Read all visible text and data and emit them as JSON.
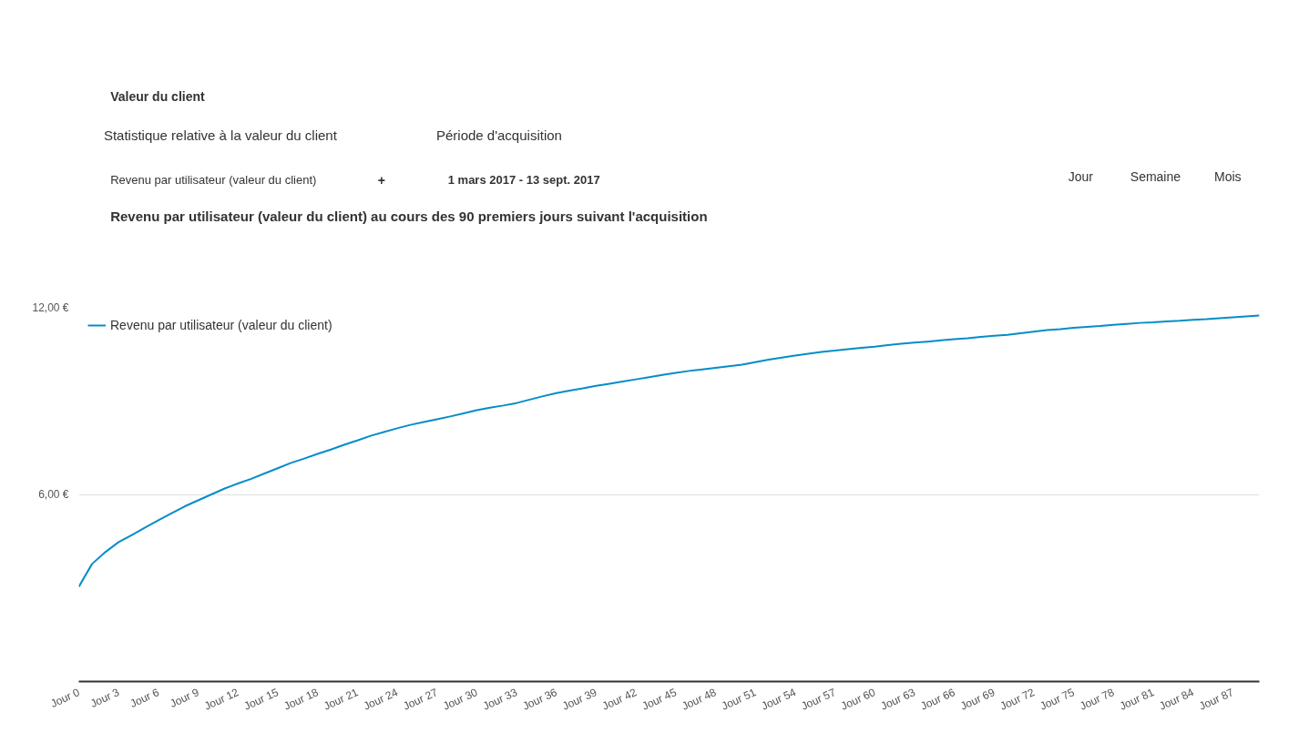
{
  "chart_data": {
    "type": "line",
    "title": "Revenu par utilisateur (valeur du client) au cours des 90 premiers jours suivant l'acquisition",
    "annotations": [
      "Valeur du client",
      "Statistique relative à la valeur du client",
      "Revenu par utilisateur (valeur du client)",
      "+",
      "Période d'acquisition",
      "1 mars 2017 - 13 sept. 2017",
      "Jour",
      "Semaine",
      "Mois"
    ],
    "categories": [
      "Jour 0",
      null,
      null,
      "Jour 3",
      null,
      null,
      "Jour 6",
      null,
      null,
      "Jour 9",
      null,
      null,
      "Jour 12",
      null,
      null,
      "Jour 15",
      null,
      null,
      "Jour 18",
      null,
      null,
      "Jour 21",
      null,
      null,
      "Jour 24",
      null,
      null,
      "Jour 27",
      null,
      null,
      "Jour 30",
      null,
      null,
      "Jour 33",
      null,
      null,
      "Jour 36",
      null,
      null,
      "Jour 39",
      null,
      null,
      "Jour 42",
      null,
      null,
      "Jour 45",
      null,
      null,
      "Jour 48",
      null,
      null,
      "Jour 51",
      null,
      null,
      "Jour 54",
      null,
      null,
      "Jour 57",
      null,
      null,
      "Jour 60",
      null,
      null,
      "Jour 63",
      null,
      null,
      "Jour 66",
      null,
      null,
      "Jour 69",
      null,
      null,
      "Jour 72",
      null,
      null,
      "Jour 75",
      null,
      null,
      "Jour 78",
      null,
      null,
      "Jour 81",
      null,
      null,
      "Jour 84",
      null,
      null,
      "Jour 87",
      null,
      null
    ],
    "series": [
      {
        "name": "Revenu par utilisateur (valeur du client)",
        "color": "#058dc7",
        "values": [
          3.04,
          3.77,
          4.15,
          4.47,
          4.7,
          4.94,
          5.17,
          5.4,
          5.62,
          5.81,
          6.0,
          6.19,
          6.35,
          6.5,
          6.67,
          6.84,
          7.01,
          7.15,
          7.3,
          7.44,
          7.59,
          7.73,
          7.88,
          8.0,
          8.12,
          8.23,
          8.32,
          8.41,
          8.5,
          8.6,
          8.7,
          8.78,
          8.85,
          8.93,
          9.04,
          9.15,
          9.25,
          9.33,
          9.4,
          9.48,
          9.55,
          9.62,
          9.69,
          9.76,
          9.83,
          9.9,
          9.96,
          10.01,
          10.06,
          10.11,
          10.16,
          10.24,
          10.32,
          10.39,
          10.45,
          10.51,
          10.57,
          10.61,
          10.66,
          10.7,
          10.74,
          10.79,
          10.83,
          10.87,
          10.9,
          10.94,
          10.98,
          11.01,
          11.05,
          11.09,
          11.12,
          11.17,
          11.22,
          11.27,
          11.3,
          11.34,
          11.37,
          11.4,
          11.44,
          11.47,
          11.5,
          11.52,
          11.55,
          11.57,
          11.6,
          11.62,
          11.65,
          11.68,
          11.71,
          11.74
        ]
      }
    ],
    "ylim": [
      0,
      12
    ],
    "yticks": [
      {
        "value": 6,
        "label": "6,00 €"
      },
      {
        "value": 12,
        "label": "12,00 €"
      }
    ],
    "grid": "y",
    "legend": "top left",
    "marker": "none",
    "line_style": "solid"
  }
}
